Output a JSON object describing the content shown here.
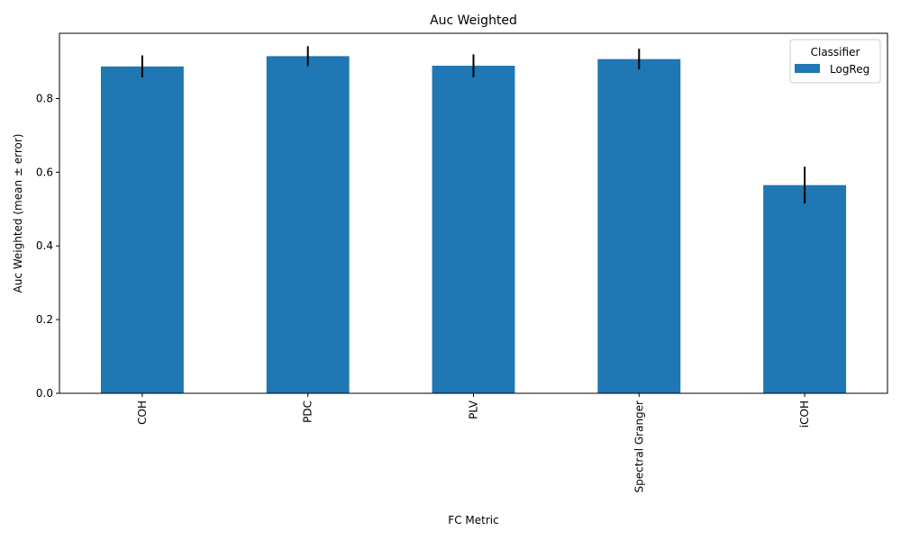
{
  "chart_data": {
    "type": "bar",
    "title": "Auc Weighted",
    "xlabel": "FC Metric",
    "ylabel": "Auc Weighted (mean ± error)",
    "categories": [
      "COH",
      "PDC",
      "PLV",
      "Spectral Granger",
      "iCOH"
    ],
    "series": [
      {
        "name": "LogReg",
        "values": [
          0.887,
          0.915,
          0.889,
          0.907,
          0.565
        ],
        "errors": [
          0.03,
          0.027,
          0.031,
          0.028,
          0.05
        ],
        "color": "#1f77b4"
      }
    ],
    "ylim": [
      0,
      0.977
    ],
    "yticks": [
      0.0,
      0.2,
      0.4,
      0.6,
      0.8
    ],
    "ytick_labels": [
      "0.0",
      "0.2",
      "0.4",
      "0.6",
      "0.8"
    ],
    "legend": {
      "title": "Classifier",
      "placement": "top-right"
    },
    "grid": false
  }
}
